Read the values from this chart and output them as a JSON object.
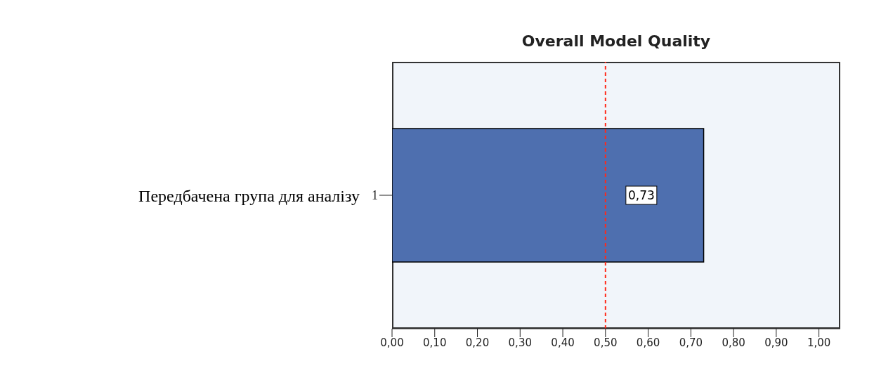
{
  "chart_data": {
    "type": "bar",
    "orientation": "horizontal",
    "title": "Overall Model Quality",
    "ylabel": "Передбачена група для аналізу",
    "categories": [
      "1"
    ],
    "values": [
      0.73
    ],
    "color": "#4e6faf",
    "value_labels": [
      "0,73"
    ],
    "xlim": [
      0,
      1.05
    ],
    "xticks": [
      {
        "value": 0,
        "label": "0,00"
      },
      {
        "value": 0.1,
        "label": "0,10"
      },
      {
        "value": 0.2,
        "label": "0,20"
      },
      {
        "value": 0.3,
        "label": "0,30"
      },
      {
        "value": 0.4,
        "label": "0,40"
      },
      {
        "value": 0.5,
        "label": "0,50"
      },
      {
        "value": 0.6,
        "label": "0,60"
      },
      {
        "value": 0.7,
        "label": "0,70"
      },
      {
        "value": 0.8,
        "label": "0,80"
      },
      {
        "value": 0.9,
        "label": "0,90"
      },
      {
        "value": 1,
        "label": "1,00"
      }
    ],
    "ref_lines": [
      {
        "axis": "x",
        "value": 0.5,
        "color": "#ff2a1a",
        "line_style": "dashed"
      }
    ]
  }
}
